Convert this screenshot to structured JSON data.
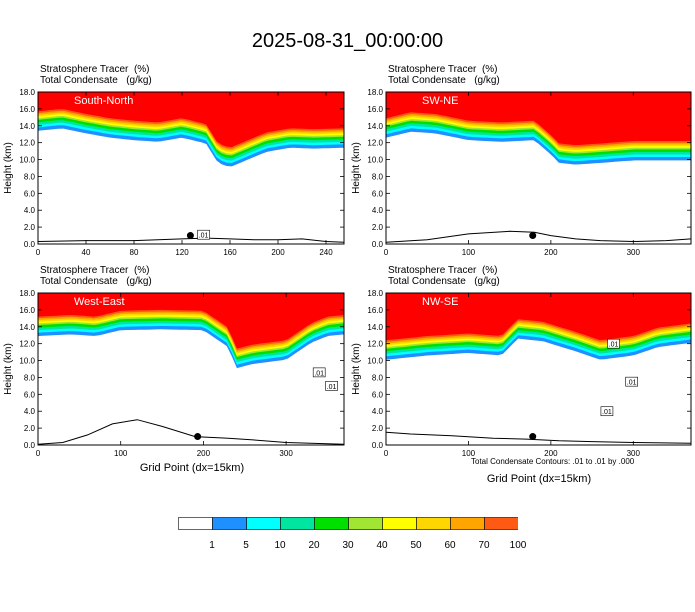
{
  "title": "2025-08-31_00:00:00",
  "colors": {
    "levels": [
      "#ffffff",
      "#1e90ff",
      "#00ffff",
      "#00e6a0",
      "#00e000",
      "#a0e632",
      "#ffff00",
      "#ffd700",
      "#ffa500",
      "#ff5a14",
      "#ff0000"
    ],
    "contour": "#000000",
    "terrain": "#000000"
  },
  "legend": {
    "labels": [
      "1",
      "5",
      "10",
      "20",
      "30",
      "40",
      "50",
      "60",
      "70",
      "100"
    ]
  },
  "panels": [
    {
      "name": "South-North",
      "var1_name": "Stratosphere Tracer",
      "var1_unit": "(%)",
      "var2_name": "Total Condensate",
      "var2_unit": "(g/kg)",
      "x_title": "",
      "footnote": ""
    },
    {
      "name": "SW-NE",
      "var1_name": "Stratosphere Tracer",
      "var1_unit": "(%)",
      "var2_name": "Total Condensate",
      "var2_unit": "(g/kg)",
      "x_title": "",
      "footnote": ""
    },
    {
      "name": "West-East",
      "var1_name": "Stratosphere Tracer",
      "var1_unit": "(%)",
      "var2_name": "Total Condensate",
      "var2_unit": "(g/kg)",
      "x_title": "Grid Point (dx=15km)",
      "footnote": ""
    },
    {
      "name": "NW-SE",
      "var1_name": "Stratosphere Tracer",
      "var1_unit": "(%)",
      "var2_name": "Total Condensate",
      "var2_unit": "(g/kg)",
      "x_title": "Grid Point (dx=15km)",
      "footnote": "Total Condensate Contours: .01 to .01 by .000"
    }
  ],
  "chart_data": [
    {
      "type": "heatmap",
      "title": "South-North",
      "ylabel": "Height (km)",
      "xlabel": "",
      "xlim": [
        0,
        255
      ],
      "ylim": [
        0,
        18
      ],
      "xticks": [
        0,
        40,
        80,
        120,
        160,
        200,
        240
      ],
      "yticks": [
        "0.0",
        "2.0",
        "4.0",
        "6.0",
        "8.0",
        "10.0",
        "12.0",
        "14.0",
        "16.0",
        "18.0"
      ],
      "colorbar_levels": [
        1,
        5,
        10,
        20,
        30,
        40,
        50,
        60,
        70,
        100
      ],
      "stratosphere_base_km": {
        "x": [
          0,
          20,
          40,
          60,
          80,
          100,
          120,
          140,
          150,
          160,
          170,
          190,
          210,
          230,
          255
        ],
        "y": [
          14.3,
          14.6,
          14.0,
          13.5,
          13.2,
          13.0,
          13.5,
          12.8,
          10.5,
          10.0,
          10.6,
          11.8,
          12.3,
          12.2,
          12.3
        ]
      },
      "terrain_km": {
        "x": [
          0,
          40,
          80,
          100,
          120,
          140,
          160,
          180,
          200,
          220,
          240,
          255
        ],
        "y": [
          0.3,
          0.4,
          0.4,
          0.5,
          0.6,
          0.7,
          0.6,
          0.5,
          0.5,
          0.6,
          0.3,
          0.2
        ]
      },
      "marker": {
        "x": 127,
        "y": 1.0
      },
      "contour_labels": [
        {
          "text": ".01",
          "x": 138,
          "y": 1.1
        }
      ]
    },
    {
      "type": "heatmap",
      "title": "SW-NE",
      "ylabel": "Height (km)",
      "xlabel": "",
      "xlim": [
        0,
        370
      ],
      "ylim": [
        0,
        18
      ],
      "xticks": [
        0,
        100,
        200,
        300
      ],
      "yticks": [
        "0.0",
        "2.0",
        "4.0",
        "6.0",
        "8.0",
        "10.0",
        "12.0",
        "14.0",
        "16.0",
        "18.0"
      ],
      "colorbar_levels": [
        1,
        5,
        10,
        20,
        30,
        40,
        50,
        60,
        70,
        100
      ],
      "stratosphere_base_km": {
        "x": [
          0,
          30,
          60,
          100,
          140,
          180,
          200,
          210,
          230,
          260,
          300,
          340,
          370
        ],
        "y": [
          13.5,
          14.2,
          14.0,
          13.2,
          13.0,
          13.2,
          11.5,
          10.5,
          10.3,
          10.5,
          10.8,
          10.8,
          10.8
        ]
      },
      "terrain_km": {
        "x": [
          0,
          50,
          100,
          150,
          180,
          200,
          230,
          260,
          300,
          340,
          370
        ],
        "y": [
          0.2,
          0.5,
          1.2,
          1.5,
          1.4,
          1.0,
          0.6,
          0.4,
          0.3,
          0.4,
          0.6
        ]
      },
      "marker": {
        "x": 178,
        "y": 1.0
      },
      "contour_labels": []
    },
    {
      "type": "heatmap",
      "title": "West-East",
      "ylabel": "Height (km)",
      "xlabel": "Grid Point (dx=15km)",
      "xlim": [
        0,
        370
      ],
      "ylim": [
        0,
        18
      ],
      "xticks": [
        0,
        100,
        200,
        300
      ],
      "yticks": [
        "0.0",
        "2.0",
        "4.0",
        "6.0",
        "8.0",
        "10.0",
        "12.0",
        "14.0",
        "16.0",
        "18.0"
      ],
      "colorbar_levels": [
        1,
        5,
        10,
        20,
        30,
        40,
        50,
        60,
        70,
        100
      ],
      "stratosphere_base_km": {
        "x": [
          0,
          40,
          70,
          100,
          150,
          200,
          230,
          240,
          260,
          300,
          330,
          350,
          370
        ],
        "y": [
          13.8,
          14.0,
          13.8,
          14.5,
          14.6,
          14.5,
          12.5,
          10.0,
          10.5,
          11.0,
          13.0,
          13.8,
          14.0
        ]
      },
      "terrain_km": {
        "x": [
          0,
          30,
          60,
          90,
          120,
          150,
          190,
          230,
          260,
          300,
          330,
          370
        ],
        "y": [
          0.1,
          0.3,
          1.2,
          2.5,
          3.0,
          2.2,
          1.0,
          0.8,
          0.6,
          0.3,
          0.2,
          0.1
        ]
      },
      "marker": {
        "x": 193,
        "y": 1.0
      },
      "contour_labels": [
        {
          "text": ".01",
          "x": 340,
          "y": 8.6
        },
        {
          "text": ".01",
          "x": 355,
          "y": 7.0
        }
      ]
    },
    {
      "type": "heatmap",
      "title": "NW-SE",
      "ylabel": "Height (km)",
      "xlabel": "Grid Point (dx=15km)",
      "xlim": [
        0,
        370
      ],
      "ylim": [
        0,
        18
      ],
      "xticks": [
        0,
        100,
        200,
        300
      ],
      "yticks": [
        "0.0",
        "2.0",
        "4.0",
        "6.0",
        "8.0",
        "10.0",
        "12.0",
        "14.0",
        "16.0",
        "18.0"
      ],
      "colorbar_levels": [
        1,
        5,
        10,
        20,
        30,
        40,
        50,
        60,
        70,
        100
      ],
      "stratosphere_base_km": {
        "x": [
          0,
          50,
          100,
          140,
          160,
          190,
          230,
          260,
          300,
          330,
          370
        ],
        "y": [
          11.0,
          11.5,
          11.8,
          11.5,
          13.5,
          13.2,
          12.0,
          11.0,
          11.5,
          12.5,
          13.0
        ]
      },
      "terrain_km": {
        "x": [
          0,
          30,
          80,
          130,
          170,
          210,
          250,
          300,
          370
        ],
        "y": [
          1.5,
          1.3,
          1.1,
          0.8,
          0.7,
          0.5,
          0.4,
          0.3,
          0.2
        ]
      },
      "marker": {
        "x": 178,
        "y": 1.0
      },
      "contour_labels": [
        {
          "text": ".01",
          "x": 276,
          "y": 12.0
        },
        {
          "text": ".01",
          "x": 298,
          "y": 7.5
        },
        {
          "text": ".01",
          "x": 268,
          "y": 4.0
        }
      ]
    }
  ]
}
